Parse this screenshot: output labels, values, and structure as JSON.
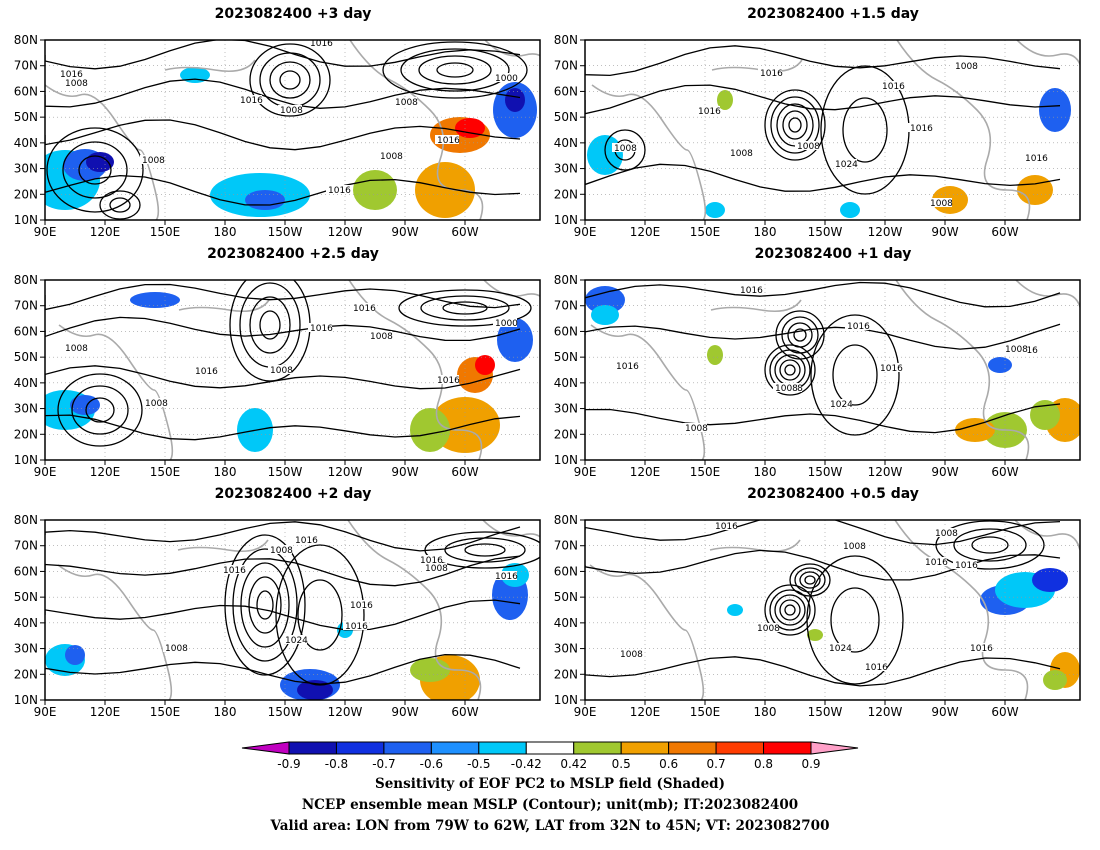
{
  "panels": [
    {
      "id": "p1",
      "title": "2023082400  +3 day"
    },
    {
      "id": "p2",
      "title": "2023082400  +1.5 day"
    },
    {
      "id": "p3",
      "title": "2023082400  +2.5 day"
    },
    {
      "id": "p4",
      "title": "2023082400  +1 day"
    },
    {
      "id": "p5",
      "title": "2023082400  +2 day"
    },
    {
      "id": "p6",
      "title": "2023082400  +0.5 day"
    }
  ],
  "axes": {
    "lat_labels": [
      "80N",
      "70N",
      "60N",
      "50N",
      "40N",
      "30N",
      "20N",
      "10N"
    ],
    "lon_labels": [
      "90E",
      "120E",
      "150E",
      "180",
      "150W",
      "120W",
      "90W",
      "60W"
    ]
  },
  "contour_labels": {
    "p1": [
      "1016",
      "1008",
      "1016",
      "1008",
      "1008",
      "1000",
      "1016",
      "1008",
      "1016",
      "1008",
      "1016"
    ],
    "p2": [
      "1016",
      "1008",
      "1016",
      "1016",
      "1008",
      "1016",
      "1008",
      "1024",
      "1008",
      "1016",
      "1008"
    ],
    "p3": [
      "1016",
      "1008",
      "1016",
      "1008",
      "1008",
      "1000",
      "1016",
      "1008",
      "1016"
    ],
    "p4": [
      "1016",
      "1016",
      "1008",
      "1016",
      "1008",
      "1024",
      "1016",
      "1008",
      "1016",
      "1008"
    ],
    "p5": [
      "1016",
      "1008",
      "1016",
      "1008",
      "1016",
      "1016",
      "1016",
      "1024",
      "1008",
      "1016"
    ],
    "p6": [
      "1016",
      "1008",
      "1016",
      "1016",
      "1008",
      "1008",
      "1024",
      "1016",
      "1016",
      "1008"
    ]
  },
  "colorbar": {
    "ticks": [
      "-0.9",
      "-0.8",
      "-0.7",
      "-0.6",
      "-0.5",
      "-0.42",
      "0.42",
      "0.5",
      "0.6",
      "0.7",
      "0.8",
      "0.9"
    ],
    "colors": [
      "#c000c0",
      "#1010b0",
      "#1030e0",
      "#1e60f0",
      "#1e90ff",
      "#00c8f8",
      "#ffffff",
      "#a0c830",
      "#f0a000",
      "#f07800",
      "#ff3c00",
      "#ff0000",
      "#ffa0c8"
    ]
  },
  "caption": {
    "line1": "Sensitivity of EOF PC2 to MSLP field (Shaded)",
    "line2": "NCEP ensemble mean MSLP (Contour); unit(mb); IT:2023082400",
    "line3": "Valid area: LON from 79W to 62W, LAT from 32N to 45N; VT: 2023082700"
  }
}
